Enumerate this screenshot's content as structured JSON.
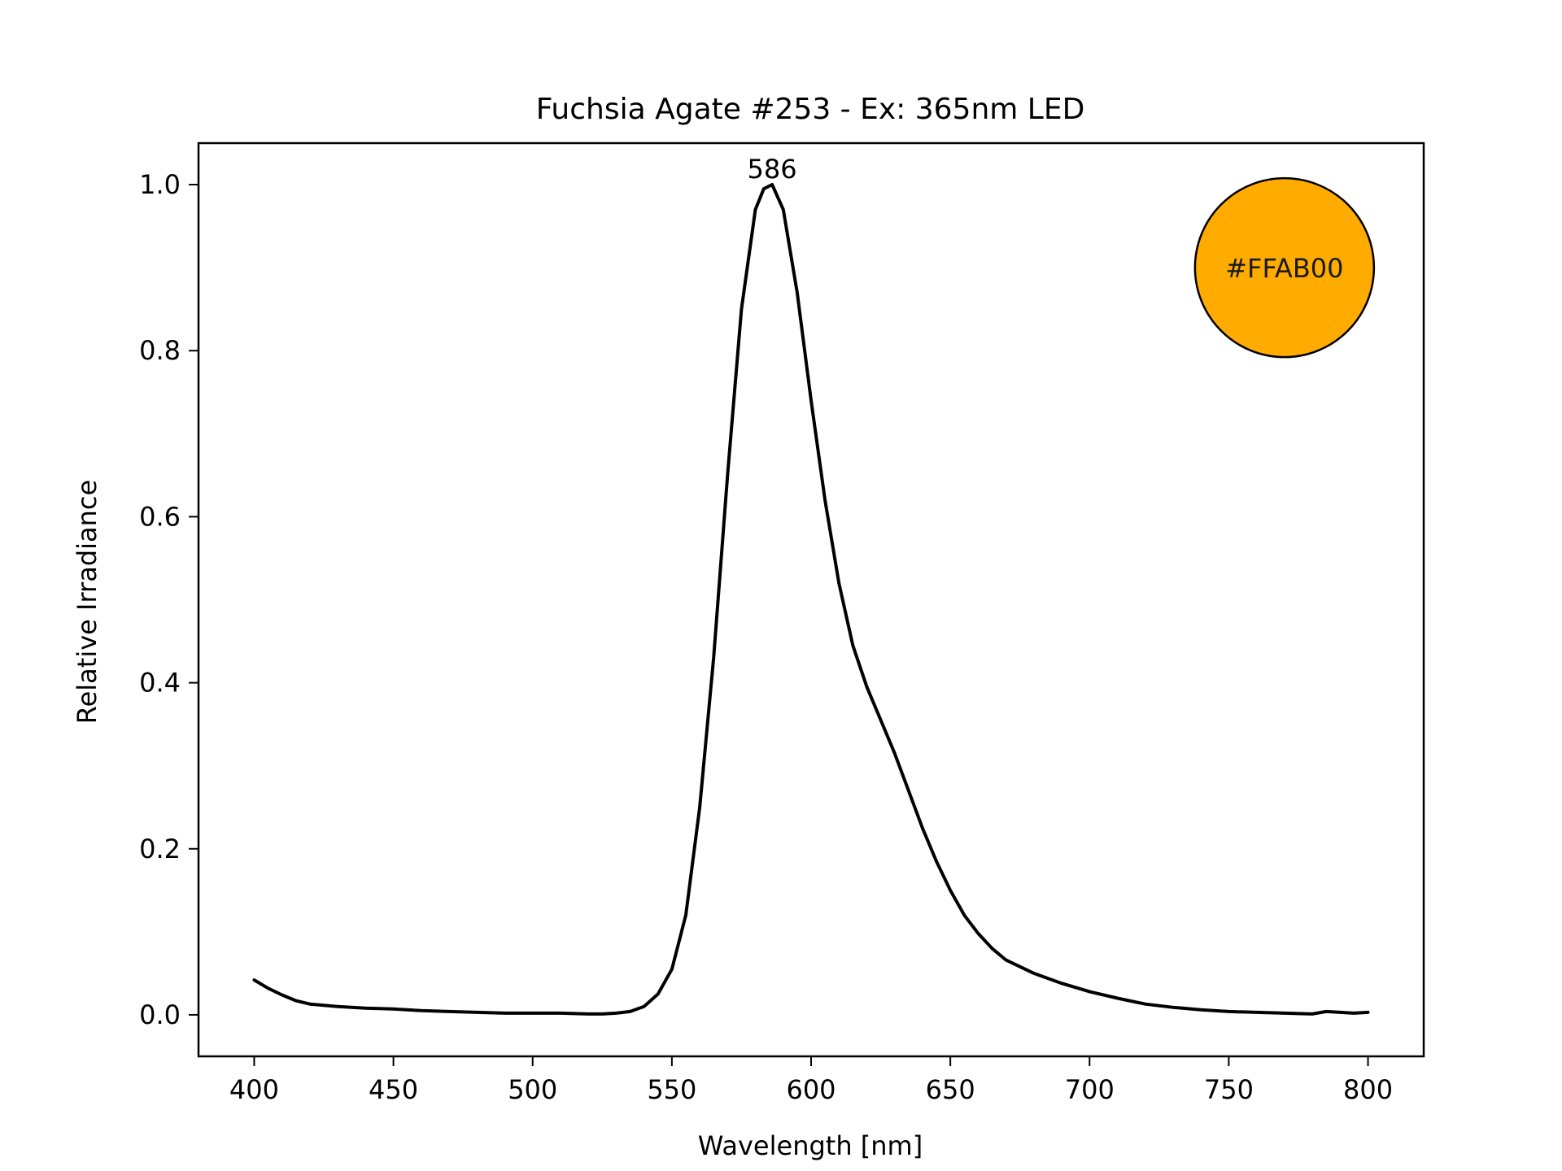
{
  "chart_data": {
    "type": "line",
    "title": "Fuchsia Agate #253 - Ex: 365nm LED",
    "xlabel": "Wavelength [nm]",
    "ylabel": "Relative Irradiance",
    "xlim": [
      380,
      820
    ],
    "ylim": [
      -0.05,
      1.05
    ],
    "x_ticks": [
      400,
      450,
      500,
      550,
      600,
      650,
      700,
      750,
      800
    ],
    "y_ticks": [
      0.0,
      0.2,
      0.4,
      0.6,
      0.8,
      1.0
    ],
    "x_tick_labels": [
      "400",
      "450",
      "500",
      "550",
      "600",
      "650",
      "700",
      "750",
      "800"
    ],
    "y_tick_labels": [
      "0.0",
      "0.2",
      "0.4",
      "0.6",
      "0.8",
      "1.0"
    ],
    "grid": false,
    "series": [
      {
        "line_color": "#000000",
        "points": [
          [
            400,
            0.042
          ],
          [
            405,
            0.032
          ],
          [
            410,
            0.024
          ],
          [
            415,
            0.017
          ],
          [
            420,
            0.013
          ],
          [
            430,
            0.01
          ],
          [
            440,
            0.008
          ],
          [
            450,
            0.007
          ],
          [
            460,
            0.005
          ],
          [
            470,
            0.004
          ],
          [
            480,
            0.003
          ],
          [
            490,
            0.002
          ],
          [
            500,
            0.002
          ],
          [
            510,
            0.002
          ],
          [
            520,
            0.001
          ],
          [
            525,
            0.001
          ],
          [
            530,
            0.002
          ],
          [
            535,
            0.004
          ],
          [
            540,
            0.01
          ],
          [
            545,
            0.025
          ],
          [
            550,
            0.055
          ],
          [
            555,
            0.12
          ],
          [
            560,
            0.25
          ],
          [
            565,
            0.43
          ],
          [
            570,
            0.65
          ],
          [
            575,
            0.85
          ],
          [
            580,
            0.97
          ],
          [
            583,
            0.995
          ],
          [
            586,
            1.0
          ],
          [
            590,
            0.97
          ],
          [
            595,
            0.87
          ],
          [
            600,
            0.74
          ],
          [
            605,
            0.62
          ],
          [
            610,
            0.52
          ],
          [
            615,
            0.445
          ],
          [
            620,
            0.395
          ],
          [
            625,
            0.355
          ],
          [
            630,
            0.315
          ],
          [
            635,
            0.27
          ],
          [
            640,
            0.225
          ],
          [
            645,
            0.185
          ],
          [
            650,
            0.15
          ],
          [
            655,
            0.12
          ],
          [
            660,
            0.098
          ],
          [
            665,
            0.08
          ],
          [
            670,
            0.066
          ],
          [
            680,
            0.05
          ],
          [
            690,
            0.038
          ],
          [
            700,
            0.028
          ],
          [
            710,
            0.02
          ],
          [
            720,
            0.013
          ],
          [
            730,
            0.009
          ],
          [
            740,
            0.006
          ],
          [
            750,
            0.004
          ],
          [
            760,
            0.003
          ],
          [
            770,
            0.002
          ],
          [
            780,
            0.001
          ],
          [
            785,
            0.004
          ],
          [
            790,
            0.003
          ],
          [
            795,
            0.002
          ],
          [
            800,
            0.003
          ]
        ]
      }
    ],
    "peak": {
      "x": 586,
      "y": 1.0,
      "label": "586"
    },
    "color_swatch": {
      "label": "#FFAB00",
      "fill": "#FFAB00",
      "x": 770,
      "y": 0.9
    }
  }
}
